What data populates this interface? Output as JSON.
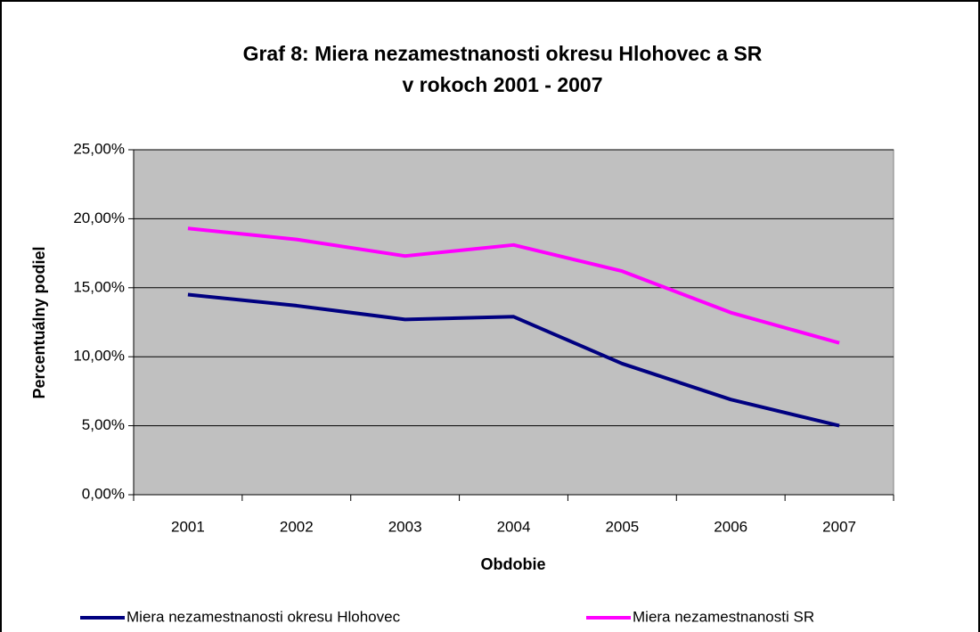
{
  "chart_data": {
    "type": "line",
    "title": [
      "Graf 8: Miera nezamestnanosti okresu Hlohovec a SR",
      "v rokoch 2001 - 2007"
    ],
    "x_label": "Obdobie",
    "y_label": "Percentuálny podiel",
    "categories": [
      "2001",
      "2002",
      "2003",
      "2004",
      "2005",
      "2006",
      "2007"
    ],
    "series": [
      {
        "name": "Miera nezamestnanosti okresu Hlohovec",
        "color": "#000080",
        "values": [
          14.5,
          13.7,
          12.7,
          12.9,
          9.5,
          6.9,
          5.0
        ]
      },
      {
        "name": "Miera nezamestnanosti SR",
        "color": "#ff00ff",
        "values": [
          19.3,
          18.5,
          17.3,
          18.1,
          16.2,
          13.2,
          11.0
        ]
      }
    ],
    "ylim": [
      0,
      25
    ],
    "yticks": [
      {
        "value": 0,
        "label": "0,00%"
      },
      {
        "value": 5,
        "label": "5,00%"
      },
      {
        "value": 10,
        "label": "10,00%"
      },
      {
        "value": 15,
        "label": "15,00%"
      },
      {
        "value": 20,
        "label": "20,00%"
      },
      {
        "value": 25,
        "label": "25,00%"
      }
    ],
    "grid": true,
    "legend": "bottom"
  }
}
